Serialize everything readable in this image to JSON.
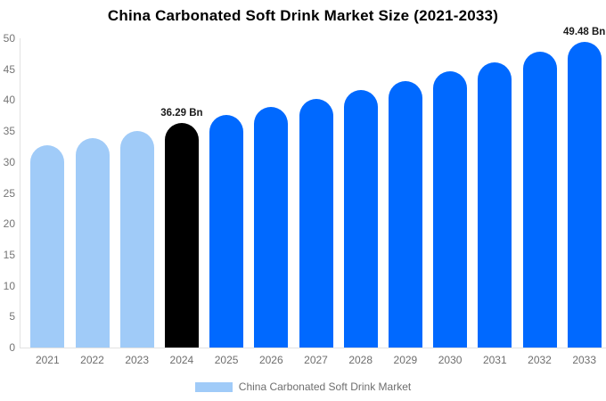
{
  "title": "China Carbonated Soft Drink Market Size (2021-2033)",
  "chart_data": {
    "type": "bar",
    "title": "China Carbonated Soft Drink Market Size (2021-2033)",
    "categories": [
      "2021",
      "2022",
      "2023",
      "2024",
      "2025",
      "2026",
      "2027",
      "2028",
      "2029",
      "2030",
      "2031",
      "2032",
      "2033"
    ],
    "values": [
      32.73,
      33.88,
      35.07,
      36.29,
      37.56,
      38.88,
      40.24,
      41.65,
      43.11,
      44.62,
      46.18,
      47.8,
      49.48
    ],
    "series": [
      {
        "name": "China Carbonated Soft Drink Market",
        "values": [
          32.73,
          33.88,
          35.07,
          36.29,
          37.56,
          38.88,
          40.24,
          41.65,
          43.11,
          44.62,
          46.18,
          47.8,
          49.48
        ]
      }
    ],
    "unit": "Bn",
    "xlabel": "",
    "ylabel": "",
    "ylim": [
      0,
      50
    ],
    "ytick_step": 5,
    "grid": false,
    "legend_position": "bottom",
    "bar_colors": [
      "#a0cbf8",
      "#a0cbf8",
      "#a0cbf8",
      "#000000",
      "#0069ff",
      "#0069ff",
      "#0069ff",
      "#0069ff",
      "#0069ff",
      "#0069ff",
      "#0069ff",
      "#0069ff",
      "#0069ff"
    ],
    "color_roles": {
      "historical": "#a0cbf8",
      "base_year": "#000000",
      "forecast": "#0069ff"
    },
    "annotations": [
      {
        "category": "2024",
        "text": "36.29 Bn"
      },
      {
        "category": "2033",
        "text": "49.48 Bn"
      }
    ]
  },
  "legend": {
    "label": "China Carbonated Soft Drink Market",
    "swatch_color": "#a0cbf8"
  },
  "axis": {
    "tick_color": "#757575",
    "line_color": "#e2e2e2"
  }
}
